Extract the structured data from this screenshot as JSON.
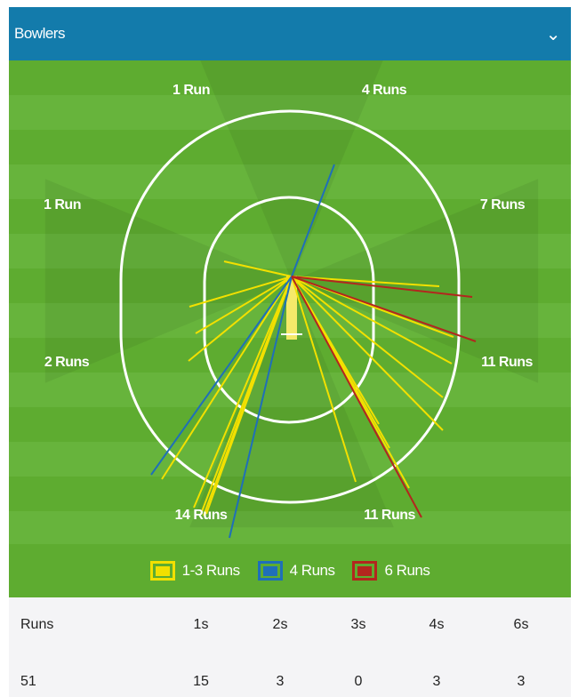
{
  "header": {
    "title": "Bowlers",
    "chevron_icon": "chevron-down-icon"
  },
  "zones": [
    "1 Run",
    "4 Runs",
    "7 Runs",
    "11 Runs",
    "11 Runs",
    "14 Runs",
    "2 Runs",
    "1 Run"
  ],
  "legend": [
    {
      "label": "1-3 Runs",
      "color": "#f2e000"
    },
    {
      "label": "4 Runs",
      "color": "#1f6fb8"
    },
    {
      "label": "6 Runs",
      "color": "#b3261e"
    }
  ],
  "colors": {
    "header": "#137bab",
    "field": "#5eac30",
    "pitch": "#f5e96a"
  },
  "table": {
    "headers": [
      "Runs",
      "1s",
      "2s",
      "3s",
      "4s",
      "6s"
    ],
    "values": [
      "51",
      "15",
      "3",
      "0",
      "3",
      "3"
    ]
  }
}
